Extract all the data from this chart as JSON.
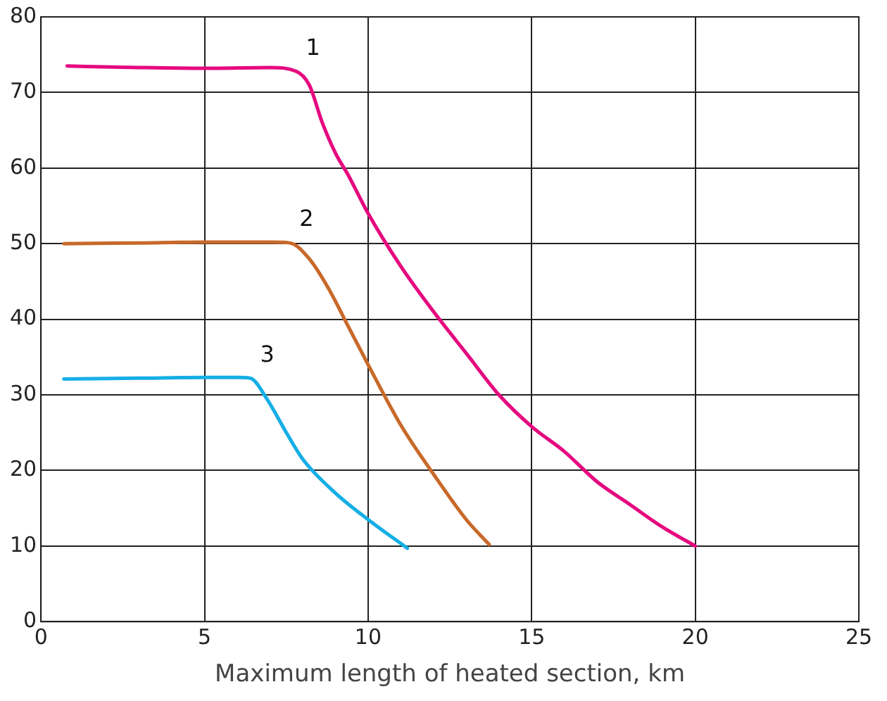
{
  "chart_data": {
    "type": "line",
    "xlabel": "Maximum length of heated section, km",
    "xlim": [
      0,
      25
    ],
    "xticks": [
      0,
      5,
      10,
      15,
      20,
      25
    ],
    "ylim": [
      0,
      80
    ],
    "yticks": [
      0,
      10,
      20,
      30,
      40,
      50,
      60,
      70,
      80
    ],
    "grid": true,
    "legend": false,
    "marker": "none",
    "line_style": "solid",
    "series": [
      {
        "name": "1",
        "color": "#e5097f",
        "x": [
          0.8,
          3,
          5,
          7,
          7.8,
          8.2,
          8.6,
          9.0,
          9.4,
          10,
          11,
          12,
          13,
          14,
          15,
          16,
          17,
          18,
          19,
          20
        ],
        "values": [
          73.5,
          73.3,
          73.2,
          73.3,
          72.8,
          71,
          66,
          62,
          59,
          54,
          47,
          41,
          35.5,
          30,
          25.8,
          22.5,
          18.5,
          15.5,
          12.5,
          10
        ]
      },
      {
        "name": "2",
        "color": "#c8692a",
        "x": [
          0.7,
          3,
          5,
          7,
          7.6,
          8.2,
          8.8,
          9.4,
          10,
          11,
          12,
          13,
          13.7
        ],
        "values": [
          50,
          50.1,
          50.2,
          50.2,
          50.1,
          48,
          44,
          39,
          34,
          26,
          19.5,
          13.5,
          10.2
        ]
      },
      {
        "name": "3",
        "color": "#16aee6",
        "x": [
          0.7,
          3,
          5,
          6,
          6.4,
          6.9,
          7.5,
          8,
          9,
          10,
          11.2
        ],
        "values": [
          32.1,
          32.2,
          32.3,
          32.3,
          32.2,
          29.5,
          25,
          21.5,
          17,
          13.5,
          9.7
        ]
      }
    ]
  }
}
